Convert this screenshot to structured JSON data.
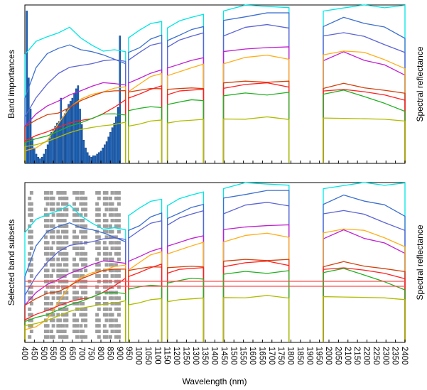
{
  "figure": {
    "xlabel": "Wavelength (nm)"
  },
  "chart_data": [
    {
      "type": "bar",
      "panel": "top",
      "ylabel_left": "Band importances",
      "ylabel_right": "Spectral reflectance",
      "xlim": [
        400,
        2400
      ],
      "grid": false,
      "bar_color": "#1565c0",
      "bar_edge_color": "#0a2a66",
      "bars_x_range": [
        410,
        900
      ],
      "bars_x_step": 10,
      "bars_values": [
        0.98,
        0.55,
        0.35,
        0.16,
        0.1,
        0.06,
        0.04,
        0.03,
        0.04,
        0.06,
        0.09,
        0.12,
        0.16,
        0.2,
        0.22,
        0.24,
        0.26,
        0.27,
        0.42,
        0.3,
        0.32,
        0.35,
        0.38,
        0.4,
        0.42,
        0.45,
        0.48,
        0.5,
        0.35,
        0.25,
        0.15,
        0.1,
        0.07,
        0.05,
        0.04,
        0.05,
        0.05,
        0.06,
        0.07,
        0.08,
        0.1,
        0.12,
        0.14,
        0.17,
        0.2,
        0.23,
        0.26,
        0.3,
        0.36,
        0.82
      ],
      "importance_ylim": [
        0,
        1
      ]
    },
    {
      "type": "scatter",
      "panel": "bottom",
      "ylabel_left": "Selected band subsets",
      "ylabel_right": "Spectral reflectance",
      "xlim": [
        400,
        2400
      ],
      "grid": false,
      "marker_color": "#9e9e9e",
      "hline_color": "#ff4d4d",
      "x_ticks": [
        400,
        450,
        500,
        550,
        600,
        650,
        700,
        750,
        800,
        850,
        900,
        950,
        1000,
        1050,
        1100,
        1150,
        1200,
        1250,
        1300,
        1350,
        1400,
        1450,
        1500,
        1550,
        1600,
        1650,
        1700,
        1750,
        1800,
        1850,
        1900,
        1950,
        2000,
        2050,
        2100,
        2150,
        2200,
        2250,
        2300,
        2350,
        2400
      ],
      "selected_band_columns": [
        425,
        435,
        510,
        520,
        540,
        550,
        575,
        585,
        600,
        610,
        620,
        660,
        675,
        695,
        705,
        720,
        780,
        790,
        820,
        830,
        850,
        860,
        880,
        895
      ]
    }
  ],
  "spectra": {
    "ylim": [
      0,
      1
    ],
    "regions": [
      [
        400,
        930
      ],
      [
        945,
        1120
      ],
      [
        1150,
        1340
      ],
      [
        1445,
        1790
      ],
      [
        1970,
        2400
      ]
    ],
    "gap_ranges": [
      [
        1340,
        1445
      ],
      [
        1790,
        1970
      ]
    ],
    "series": [
      {
        "color": "#00e5e5",
        "values_by_region": [
          [
            0.7,
            0.78,
            0.8,
            0.82,
            0.86,
            0.8,
            0.76,
            0.72,
            0.72,
            0.7
          ],
          [
            0.8,
            0.84,
            0.88,
            0.9
          ],
          [
            0.86,
            0.9,
            0.92,
            0.94
          ],
          [
            0.98,
            1.0,
            1.0,
            1.0
          ],
          [
            0.96,
            1.0,
            1.0,
            1.0,
            1.0
          ]
        ]
      },
      {
        "color": "#3c6fd0",
        "values_by_region": [
          [
            0.4,
            0.6,
            0.7,
            0.74,
            0.76,
            0.72,
            0.7,
            0.68,
            0.66,
            0.64
          ],
          [
            0.7,
            0.74,
            0.8,
            0.82
          ],
          [
            0.78,
            0.82,
            0.86,
            0.88
          ],
          [
            0.9,
            0.94,
            0.96,
            0.95
          ],
          [
            0.88,
            0.92,
            0.9,
            0.86,
            0.8
          ]
        ]
      },
      {
        "color": "#5b64d4",
        "values_by_region": [
          [
            0.3,
            0.42,
            0.5,
            0.56,
            0.6,
            0.62,
            0.64,
            0.66,
            0.66,
            0.64
          ],
          [
            0.66,
            0.7,
            0.74,
            0.76
          ],
          [
            0.74,
            0.78,
            0.8,
            0.82
          ],
          [
            0.82,
            0.86,
            0.88,
            0.87
          ],
          [
            0.8,
            0.84,
            0.8,
            0.76,
            0.7
          ]
        ]
      },
      {
        "color": "#c020d0",
        "values_by_region": [
          [
            0.22,
            0.3,
            0.36,
            0.4,
            0.44,
            0.46,
            0.48,
            0.5,
            0.5,
            0.5
          ],
          [
            0.5,
            0.54,
            0.58,
            0.6
          ],
          [
            0.6,
            0.63,
            0.66,
            0.68
          ],
          [
            0.7,
            0.73,
            0.74,
            0.73
          ],
          [
            0.66,
            0.7,
            0.66,
            0.62,
            0.56
          ]
        ]
      },
      {
        "color": "#ffae1a",
        "values_by_region": [
          [
            0.08,
            0.1,
            0.14,
            0.24,
            0.34,
            0.4,
            0.44,
            0.46,
            0.48,
            0.48
          ],
          [
            0.46,
            0.5,
            0.54,
            0.56
          ],
          [
            0.56,
            0.58,
            0.6,
            0.62
          ],
          [
            0.64,
            0.67,
            0.68,
            0.67
          ],
          [
            0.68,
            0.72,
            0.7,
            0.66,
            0.6
          ]
        ]
      },
      {
        "color": "#d4400a",
        "values_by_region": [
          [
            0.22,
            0.26,
            0.3,
            0.32,
            0.36,
            0.4,
            0.42,
            0.44,
            0.45,
            0.46
          ],
          [
            0.44,
            0.46,
            0.48,
            0.48
          ],
          [
            0.46,
            0.47,
            0.48,
            0.48
          ],
          [
            0.5,
            0.52,
            0.52,
            0.51
          ],
          [
            0.48,
            0.5,
            0.48,
            0.46,
            0.44
          ]
        ]
      },
      {
        "color": "#ff2020",
        "values_by_region": [
          [
            0.14,
            0.18,
            0.2,
            0.22,
            0.24,
            0.26,
            0.28,
            0.32,
            0.36,
            0.4
          ],
          [
            0.42,
            0.44,
            0.46,
            0.48
          ],
          [
            0.44,
            0.46,
            0.46,
            0.46
          ],
          [
            0.48,
            0.5,
            0.5,
            0.49
          ],
          [
            0.45,
            0.47,
            0.45,
            0.43,
            0.4
          ]
        ]
      },
      {
        "color": "#22b022",
        "values_by_region": [
          [
            0.12,
            0.14,
            0.16,
            0.2,
            0.24,
            0.26,
            0.28,
            0.3,
            0.3,
            0.3
          ],
          [
            0.32,
            0.34,
            0.36,
            0.36
          ],
          [
            0.36,
            0.38,
            0.4,
            0.4
          ],
          [
            0.42,
            0.44,
            0.44,
            0.44
          ],
          [
            0.44,
            0.46,
            0.42,
            0.38,
            0.32
          ]
        ]
      },
      {
        "color": "#b0bc00",
        "values_by_region": [
          [
            0.1,
            0.12,
            0.14,
            0.16,
            0.18,
            0.2,
            0.22,
            0.24,
            0.25,
            0.26
          ],
          [
            0.24,
            0.25,
            0.26,
            0.26
          ],
          [
            0.26,
            0.27,
            0.27,
            0.27
          ],
          [
            0.28,
            0.28,
            0.28,
            0.28
          ],
          [
            0.28,
            0.28,
            0.28,
            0.27,
            0.27
          ]
        ]
      }
    ]
  }
}
